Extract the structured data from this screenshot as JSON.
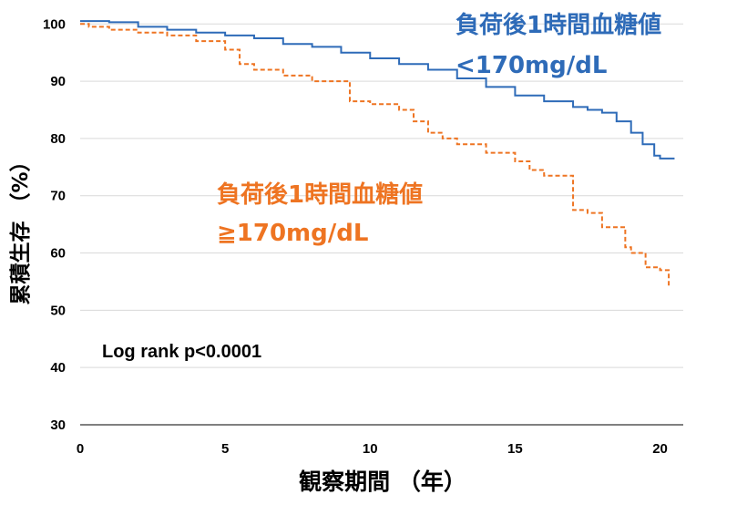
{
  "colors": {
    "low": "#2e6bb8",
    "high": "#ee7422",
    "grid": "#d9d9d9"
  },
  "annotations": {
    "low_line1": "負荷後1時間血糖値",
    "low_line2": "<170mg/dL",
    "high_line1": "負荷後1時間血糖値",
    "high_line2": "≧170mg/dL",
    "stat": "Log rank p<0.0001"
  },
  "chart_data": {
    "type": "line",
    "step": true,
    "ylabel": "累積生存 （%）",
    "xlabel": "観察期間 （年）",
    "xlim": [
      0,
      20.8
    ],
    "ylim": [
      30,
      101
    ],
    "xticks": [
      0,
      5,
      10,
      15,
      20
    ],
    "yticks": [
      30,
      40,
      50,
      60,
      70,
      80,
      90,
      100
    ],
    "grid": "horizontal",
    "series": [
      {
        "name": "負荷後1時間血糖値<170mg/dL",
        "color": "#2e6bb8",
        "style": "solid",
        "x": [
          0,
          1,
          2,
          3,
          4,
          5,
          6,
          7,
          8,
          9,
          10,
          11,
          12,
          13,
          14,
          15,
          16,
          17,
          17.5,
          18,
          18.5,
          19,
          19.4,
          19.8,
          20,
          20.5
        ],
        "y": [
          100.5,
          100.3,
          99.5,
          99,
          98.5,
          98,
          97.5,
          96.5,
          96,
          95,
          94,
          93,
          92,
          90.5,
          89,
          87.5,
          86.5,
          85.5,
          85,
          84.5,
          83,
          81,
          79,
          77,
          76.5,
          76.5
        ]
      },
      {
        "name": "負荷後1時間血糖値≧170mg/dL",
        "color": "#ee7422",
        "style": "dashed",
        "x": [
          0,
          0.3,
          1,
          2,
          3,
          4,
          5,
          5.5,
          6,
          7,
          8,
          9,
          9.3,
          10,
          11,
          11.5,
          12,
          12.5,
          13,
          14,
          15,
          15.5,
          16,
          17,
          17.5,
          18,
          18.5,
          18.8,
          19,
          19.5,
          20,
          20.3
        ],
        "y": [
          100,
          99.5,
          99,
          98.5,
          98,
          97,
          95.5,
          93,
          92,
          91,
          90,
          90,
          86.5,
          86,
          85,
          83,
          81,
          80,
          79,
          77.5,
          76,
          74.5,
          73.5,
          67.5,
          67,
          64.5,
          64.5,
          61,
          60,
          57.5,
          57,
          54
        ]
      }
    ]
  }
}
